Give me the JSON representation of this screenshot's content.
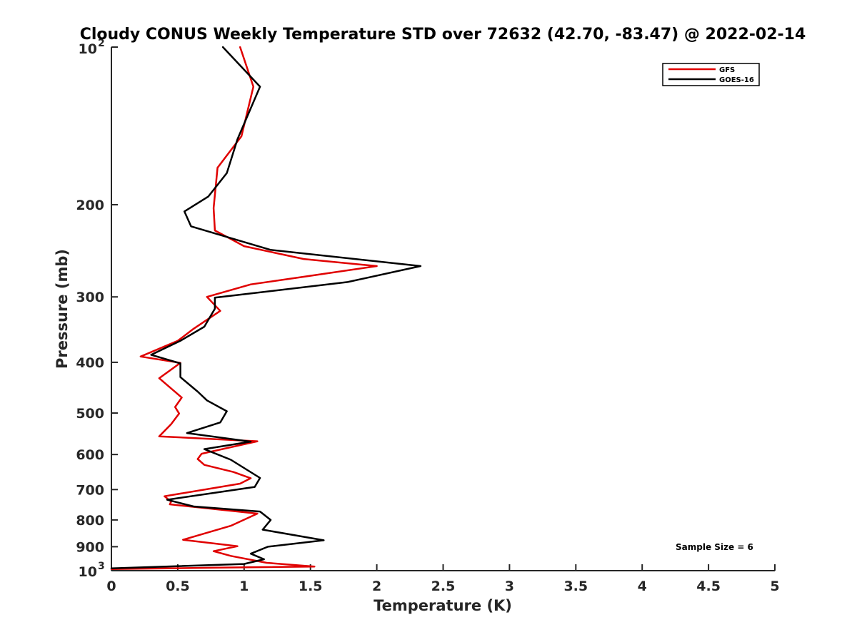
{
  "chart_data": {
    "type": "line",
    "title": "Cloudy CONUS Weekly Temperature STD over 72632 (42.70, -83.47) @ 2022-02-14",
    "xlabel": "Temperature (K)",
    "ylabel": "Pressure (mb)",
    "xlim": [
      0,
      5
    ],
    "ylim": [
      100,
      1000
    ],
    "y_scale": "log",
    "y_reversed": true,
    "grid": false,
    "legend_position": "top-right",
    "x_ticks": [
      "0",
      "0.5",
      "1",
      "1.5",
      "2",
      "2.5",
      "3",
      "3.5",
      "4",
      "4.5",
      "5"
    ],
    "y_ticks": [
      {
        "value": 100,
        "base": "10",
        "exp": "2"
      },
      {
        "value": 200,
        "label": "200"
      },
      {
        "value": 300,
        "label": "300"
      },
      {
        "value": 400,
        "label": "400"
      },
      {
        "value": 500,
        "label": "500"
      },
      {
        "value": 600,
        "label": "600"
      },
      {
        "value": 700,
        "label": "700"
      },
      {
        "value": 800,
        "label": "800"
      },
      {
        "value": 900,
        "label": "900"
      },
      {
        "value": 1000,
        "base": "10",
        "exp": "3"
      }
    ],
    "annotation": "Sample Size = 6",
    "series": [
      {
        "name": "GFS",
        "color": "#e00000",
        "points": [
          [
            0.97,
            100
          ],
          [
            1.07,
            119
          ],
          [
            0.98,
            148
          ],
          [
            0.8,
            170
          ],
          [
            0.77,
            203
          ],
          [
            0.78,
            224
          ],
          [
            0.92,
            234
          ],
          [
            1.0,
            240
          ],
          [
            1.45,
            254
          ],
          [
            2.0,
            262
          ],
          [
            1.43,
            275
          ],
          [
            1.05,
            284
          ],
          [
            0.72,
            300
          ],
          [
            0.82,
            319
          ],
          [
            0.62,
            345
          ],
          [
            0.5,
            364
          ],
          [
            0.22,
            390
          ],
          [
            0.52,
            401
          ],
          [
            0.36,
            429
          ],
          [
            0.53,
            467
          ],
          [
            0.48,
            487
          ],
          [
            0.51,
            501
          ],
          [
            0.45,
            525
          ],
          [
            0.36,
            554
          ],
          [
            1.1,
            566
          ],
          [
            0.68,
            598
          ],
          [
            0.65,
            612
          ],
          [
            0.7,
            628
          ],
          [
            0.92,
            648
          ],
          [
            1.05,
            666
          ],
          [
            0.97,
            682
          ],
          [
            0.4,
            721
          ],
          [
            0.45,
            738
          ],
          [
            0.44,
            747
          ],
          [
            1.1,
            778
          ],
          [
            0.9,
            821
          ],
          [
            0.54,
            873
          ],
          [
            0.95,
            898
          ],
          [
            0.77,
            918
          ],
          [
            0.9,
            937
          ],
          [
            1.17,
            966
          ],
          [
            1.53,
            982
          ],
          [
            0.8,
            987
          ],
          [
            0.0,
            993
          ]
        ]
      },
      {
        "name": "GOES-16",
        "color": "#000000",
        "points": [
          [
            0.84,
            100
          ],
          [
            1.12,
            119
          ],
          [
            0.95,
            150
          ],
          [
            0.87,
            174
          ],
          [
            0.73,
            193
          ],
          [
            0.55,
            206
          ],
          [
            0.6,
            220
          ],
          [
            1.2,
            244
          ],
          [
            2.33,
            262
          ],
          [
            1.78,
            281
          ],
          [
            0.78,
            301
          ],
          [
            0.78,
            316
          ],
          [
            0.7,
            342
          ],
          [
            0.52,
            364
          ],
          [
            0.3,
            387
          ],
          [
            0.52,
            402
          ],
          [
            0.52,
            427
          ],
          [
            0.65,
            455
          ],
          [
            0.72,
            473
          ],
          [
            0.87,
            496
          ],
          [
            0.82,
            521
          ],
          [
            0.57,
            546
          ],
          [
            1.05,
            567
          ],
          [
            0.7,
            586
          ],
          [
            0.9,
            614
          ],
          [
            1.12,
            665
          ],
          [
            1.08,
            692
          ],
          [
            0.42,
            732
          ],
          [
            0.62,
            754
          ],
          [
            1.12,
            771
          ],
          [
            1.2,
            800
          ],
          [
            1.14,
            835
          ],
          [
            1.6,
            875
          ],
          [
            1.18,
            900
          ],
          [
            1.05,
            928
          ],
          [
            1.15,
            951
          ],
          [
            1.0,
            971
          ],
          [
            0.0,
            990
          ]
        ]
      }
    ]
  }
}
